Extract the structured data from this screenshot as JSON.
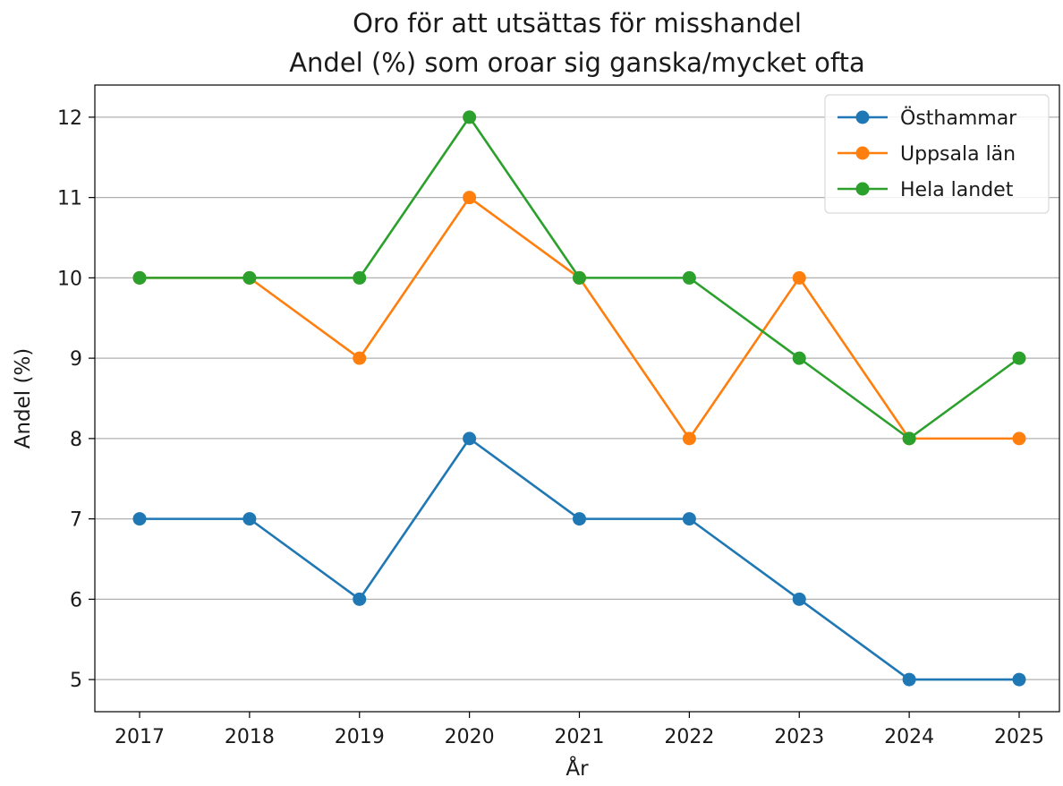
{
  "chart_data": {
    "type": "line",
    "title": "Oro för att utsättas för misshandel",
    "subtitle": "Andel (%) som oroar sig ganska/mycket ofta",
    "xlabel": "År",
    "ylabel": "Andel (%)",
    "x": [
      "2017",
      "2018",
      "2019",
      "2020",
      "2021",
      "2022",
      "2023",
      "2024",
      "2025"
    ],
    "yticks": [
      5,
      6,
      7,
      8,
      9,
      10,
      11,
      12
    ],
    "ylim": [
      4.6,
      12.4
    ],
    "grid": "horizontal",
    "legend_position": "top-right",
    "series": [
      {
        "name": "Östhammar",
        "color": "#1f77b4",
        "values": [
          7,
          7,
          6,
          8,
          7,
          7,
          6,
          5,
          5
        ]
      },
      {
        "name": "Uppsala län",
        "color": "#ff7f0e",
        "values": [
          10,
          10,
          9,
          11,
          10,
          8,
          10,
          8,
          8
        ]
      },
      {
        "name": "Hela landet",
        "color": "#2ca02c",
        "values": [
          10,
          10,
          10,
          12,
          10,
          10,
          9,
          8,
          9
        ]
      }
    ]
  }
}
